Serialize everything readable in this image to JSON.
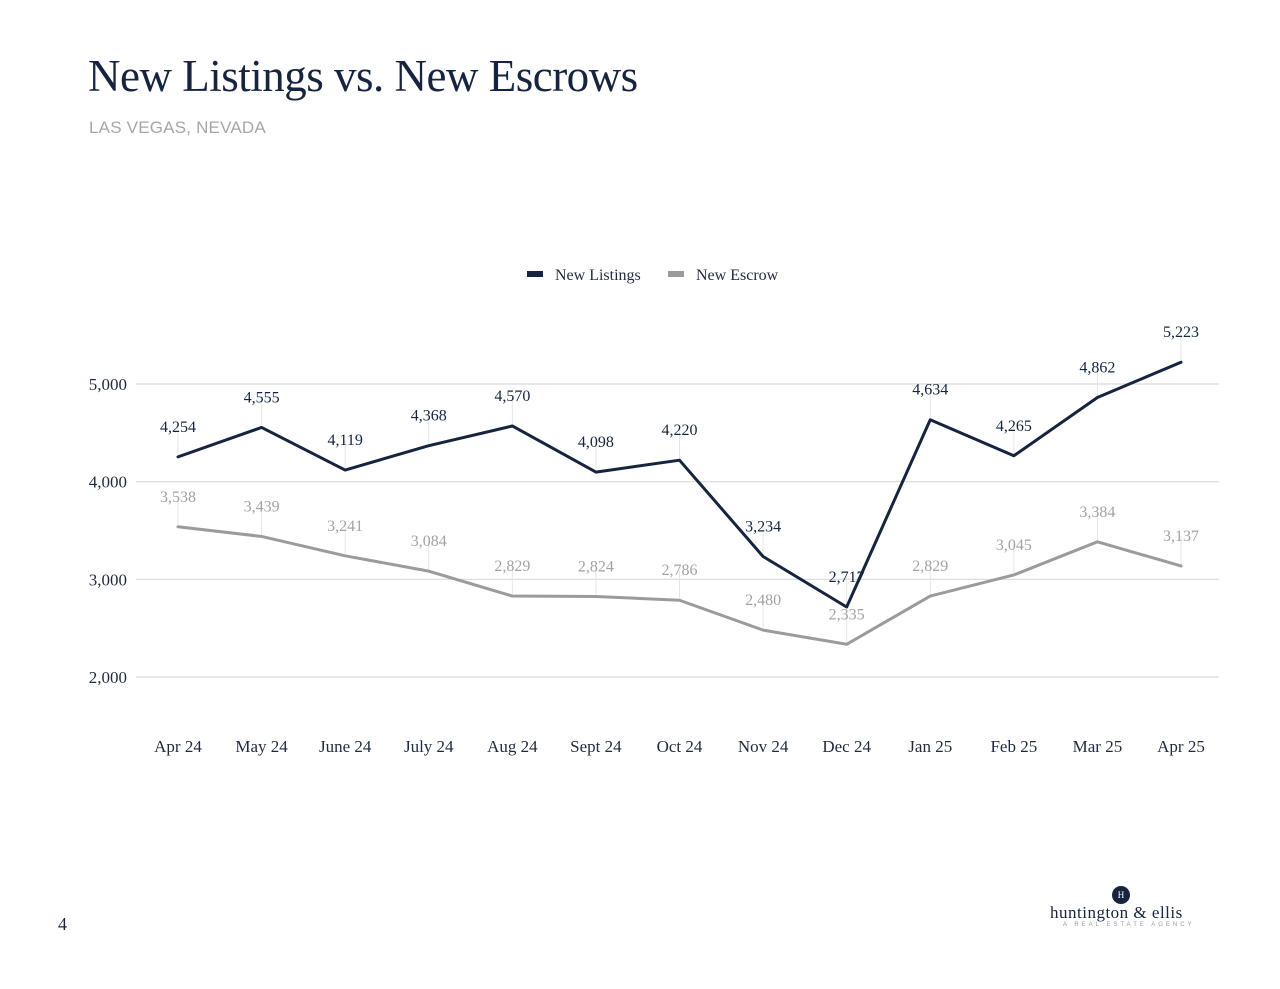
{
  "page": {
    "title": "New Listings vs. New Escrows",
    "subtitle": "LAS VEGAS, NEVADA",
    "page_number": "4"
  },
  "logo": {
    "mark": "H",
    "name": "huntington & ellis",
    "tagline": "A REAL ESTATE AGENCY"
  },
  "colors": {
    "listings": "#16243f",
    "escrow": "#9b9b9e",
    "grid": "#d9d9d9"
  },
  "chart_data": {
    "type": "line",
    "categories": [
      "Apr 24",
      "May 24",
      "June 24",
      "July 24",
      "Aug 24",
      "Sept 24",
      "Oct 24",
      "Nov 24",
      "Dec 24",
      "Jan 25",
      "Feb 25",
      "Mar 25",
      "Apr 25"
    ],
    "series": [
      {
        "name": "New Listings",
        "values": [
          4254,
          4555,
          4119,
          4368,
          4570,
          4098,
          4220,
          3234,
          2717,
          4634,
          4265,
          4862,
          5223
        ],
        "labels": [
          "4,254",
          "4,555",
          "4,119",
          "4,368",
          "4,570",
          "4,098",
          "4,220",
          "3,234",
          "2,717",
          "4,634",
          "4,265",
          "4,862",
          "5,223"
        ]
      },
      {
        "name": "New Escrow",
        "values": [
          3538,
          3439,
          3241,
          3084,
          2829,
          2824,
          2786,
          2480,
          2335,
          2829,
          3045,
          3384,
          3137
        ],
        "labels": [
          "3,538",
          "3,439",
          "3,241",
          "3,084",
          "2,829",
          "2,824",
          "2,786",
          "2,480",
          "2,335",
          "2,829",
          "3,045",
          "3,384",
          "3,137"
        ]
      }
    ],
    "y_ticks": [
      {
        "value": 2000,
        "label": "2,000"
      },
      {
        "value": 3000,
        "label": "3,000"
      },
      {
        "value": 4000,
        "label": "4,000"
      },
      {
        "value": 5000,
        "label": "5,000"
      }
    ],
    "ylim": [
      1500,
      5600
    ],
    "grid": true,
    "legend": "top-center"
  }
}
